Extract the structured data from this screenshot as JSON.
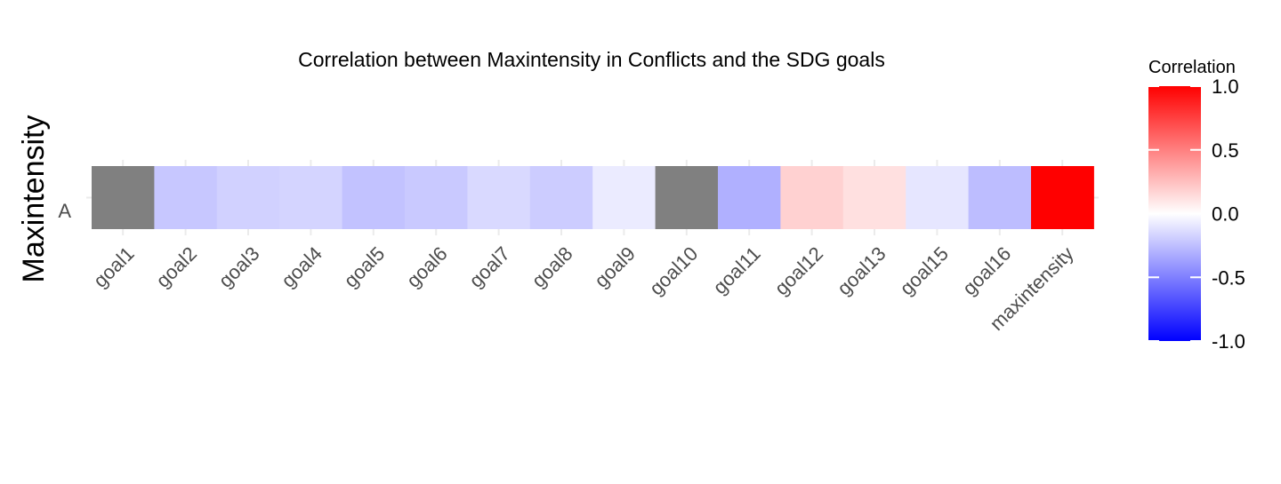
{
  "chart_data": {
    "type": "heatmap",
    "title": "Correlation between Maxintensity in Conflicts and the SDG goals",
    "xlabel": "",
    "ylabel": "Maxintensity",
    "rows": [
      "A"
    ],
    "categories": [
      "goal1",
      "goal2",
      "goal3",
      "goal4",
      "goal5",
      "goal6",
      "goal7",
      "goal8",
      "goal9",
      "goal10",
      "goal11",
      "goal12",
      "goal13",
      "goal15",
      "goal16",
      "maxintensity"
    ],
    "values": [
      null,
      -0.22,
      -0.18,
      -0.17,
      -0.24,
      -0.21,
      -0.15,
      -0.2,
      -0.08,
      null,
      -0.31,
      0.18,
      0.12,
      -0.1,
      -0.26,
      1.0
    ],
    "na_color": "#808080",
    "grid": true,
    "legend": {
      "title": "Correlation",
      "position": "right",
      "range": [
        -1,
        1
      ],
      "ticks": [
        "1.0",
        "0.5",
        "0.0",
        "-0.5",
        "-1.0"
      ],
      "low_color": "#0000ff",
      "mid_color": "#ffffff",
      "high_color": "#ff0000"
    }
  }
}
